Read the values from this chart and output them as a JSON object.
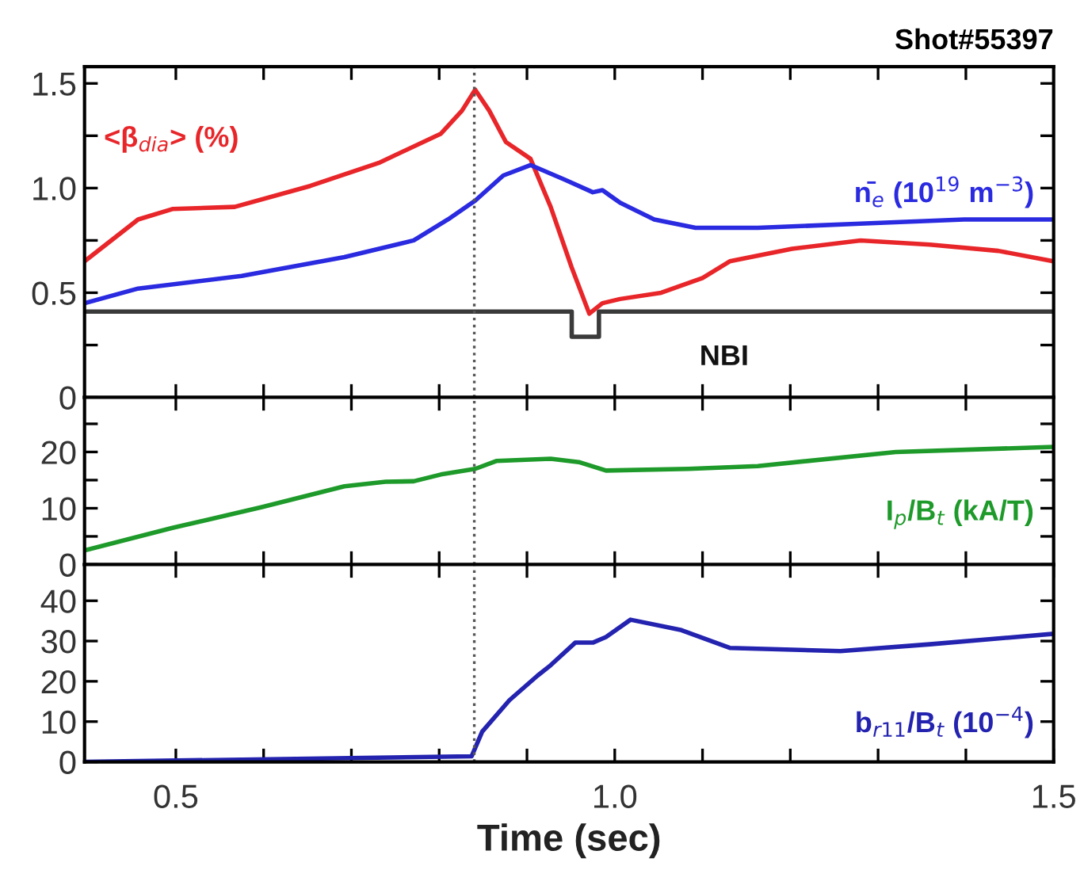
{
  "chart_data": [
    {
      "type": "line",
      "title": "Shot#55397",
      "tick_labels": "y",
      "grid": false,
      "legend": false,
      "marker": "none",
      "line_style": "solid",
      "xlim": [
        0.396,
        1.5
      ],
      "xticks": [
        {
          "value": 0.5,
          "label": null
        },
        {
          "value": 0.6,
          "label": null
        },
        {
          "value": 0.7,
          "label": null
        },
        {
          "value": 0.8,
          "label": null
        },
        {
          "value": 0.9,
          "label": null
        },
        {
          "value": 1.0,
          "label": null
        },
        {
          "value": 1.1,
          "label": null
        },
        {
          "value": 1.2,
          "label": null
        },
        {
          "value": 1.3,
          "label": null
        },
        {
          "value": 1.4,
          "label": null
        }
      ],
      "ylim": [
        0,
        1.58
      ],
      "yticks": [
        0,
        {
          "value": 0.25,
          "label": null
        },
        0.5,
        {
          "value": 0.75,
          "label": null
        },
        {
          "value": 1.0,
          "label": "1.0"
        },
        {
          "value": 1.25,
          "label": null
        },
        1.5
      ],
      "ref_lines": [
        {
          "axis": "x",
          "value": 0.84,
          "color": "#555555",
          "line_style": "dotted"
        }
      ],
      "series": [
        {
          "name": "<β$_{dia}$> (%)",
          "color": "#e8262a",
          "x": [
            0.396,
            0.457,
            0.496,
            0.567,
            0.653,
            0.731,
            0.802,
            0.826,
            0.841,
            0.857,
            0.876,
            0.904,
            0.927,
            0.951,
            0.971,
            0.986,
            1.006,
            1.053,
            1.1,
            1.131,
            1.202,
            1.28,
            1.359,
            1.437,
            1.5
          ],
          "values": [
            0.65,
            0.85,
            0.9,
            0.91,
            1.01,
            1.12,
            1.26,
            1.37,
            1.47,
            1.37,
            1.22,
            1.14,
            0.91,
            0.62,
            0.4,
            0.45,
            0.47,
            0.5,
            0.57,
            0.65,
            0.71,
            0.75,
            0.73,
            0.7,
            0.65
          ]
        },
        {
          "name": "n̄$_{e}$ (10$^{19}$ m$^{−3}$)",
          "color": "#2a2ae0",
          "x": [
            0.396,
            0.457,
            0.575,
            0.692,
            0.771,
            0.81,
            0.841,
            0.873,
            0.904,
            0.943,
            0.975,
            0.986,
            1.006,
            1.045,
            1.092,
            1.163,
            1.28,
            1.398,
            1.5
          ],
          "values": [
            0.45,
            0.52,
            0.58,
            0.67,
            0.75,
            0.85,
            0.94,
            1.06,
            1.11,
            1.04,
            0.98,
            0.99,
            0.93,
            0.85,
            0.81,
            0.81,
            0.83,
            0.85,
            0.85
          ]
        },
        {
          "name": "NBI",
          "color": "#3a3a3a",
          "x": [
            0.396,
            0.951,
            0.951,
            0.982,
            0.982,
            1.5
          ],
          "values": [
            0.41,
            0.41,
            0.29,
            0.29,
            0.41,
            0.41
          ]
        }
      ]
    },
    {
      "type": "line",
      "tick_labels": "y",
      "grid": false,
      "legend": false,
      "marker": "none",
      "line_style": "solid",
      "xlim": [
        0.396,
        1.5
      ],
      "xticks": [
        {
          "value": 0.5,
          "label": null
        },
        {
          "value": 0.6,
          "label": null
        },
        {
          "value": 0.7,
          "label": null
        },
        {
          "value": 0.8,
          "label": null
        },
        {
          "value": 0.9,
          "label": null
        },
        {
          "value": 1.0,
          "label": null
        },
        {
          "value": 1.1,
          "label": null
        },
        {
          "value": 1.2,
          "label": null
        },
        {
          "value": 1.3,
          "label": null
        },
        {
          "value": 1.4,
          "label": null
        }
      ],
      "ylim": [
        0,
        29.7
      ],
      "yticks": [
        0,
        {
          "value": 5,
          "label": null
        },
        10,
        {
          "value": 15,
          "label": null
        },
        20,
        {
          "value": 25,
          "label": null
        }
      ],
      "ref_lines": [
        {
          "axis": "x",
          "value": 0.84,
          "color": "#555555",
          "line_style": "dotted"
        }
      ],
      "series": [
        {
          "name": "I$_{p}$/B$_{t}$ (kA/T)",
          "color": "#1e9a2a",
          "x": [
            0.396,
            0.496,
            0.598,
            0.692,
            0.739,
            0.771,
            0.802,
            0.841,
            0.865,
            0.927,
            0.959,
            0.99,
            1.084,
            1.163,
            1.32,
            1.5
          ],
          "values": [
            2.5,
            6.5,
            10.2,
            13.9,
            14.7,
            14.8,
            16,
            17,
            18.4,
            18.8,
            18.2,
            16.7,
            17,
            17.5,
            20,
            20.9
          ]
        }
      ]
    },
    {
      "type": "line",
      "xlabel": "Time (sec)",
      "grid": false,
      "legend": false,
      "marker": "none",
      "line_style": "solid",
      "xlim": [
        0.396,
        1.5
      ],
      "xticks": [
        0.5,
        {
          "value": 0.6,
          "label": null
        },
        {
          "value": 0.7,
          "label": null
        },
        {
          "value": 0.8,
          "label": null
        },
        {
          "value": 0.9,
          "label": null
        },
        {
          "value": 1.0,
          "label": "1.0"
        },
        {
          "value": 1.1,
          "label": null
        },
        {
          "value": 1.2,
          "label": null
        },
        {
          "value": 1.3,
          "label": null
        },
        {
          "value": 1.4,
          "label": null
        },
        1.5
      ],
      "ylim": [
        0,
        49
      ],
      "yticks": [
        0,
        10,
        20,
        30,
        40
      ],
      "ref_lines": [
        {
          "axis": "x",
          "value": 0.84,
          "color": "#555555",
          "line_style": "dotted"
        }
      ],
      "series": [
        {
          "name": "b$_{r11}$/B$_{t}$ (10$^{−4}$)",
          "color": "#2323b0",
          "x": [
            0.396,
            0.837,
            0.849,
            0.88,
            0.912,
            0.927,
            0.955,
            0.975,
            0.99,
            1.018,
            1.076,
            1.131,
            1.257,
            1.359,
            1.5
          ],
          "values": [
            0,
            1.4,
            7.5,
            15.3,
            21.4,
            24,
            29.6,
            29.6,
            31,
            35.3,
            32.7,
            28.3,
            27.5,
            29.2,
            31.8
          ]
        }
      ]
    }
  ]
}
